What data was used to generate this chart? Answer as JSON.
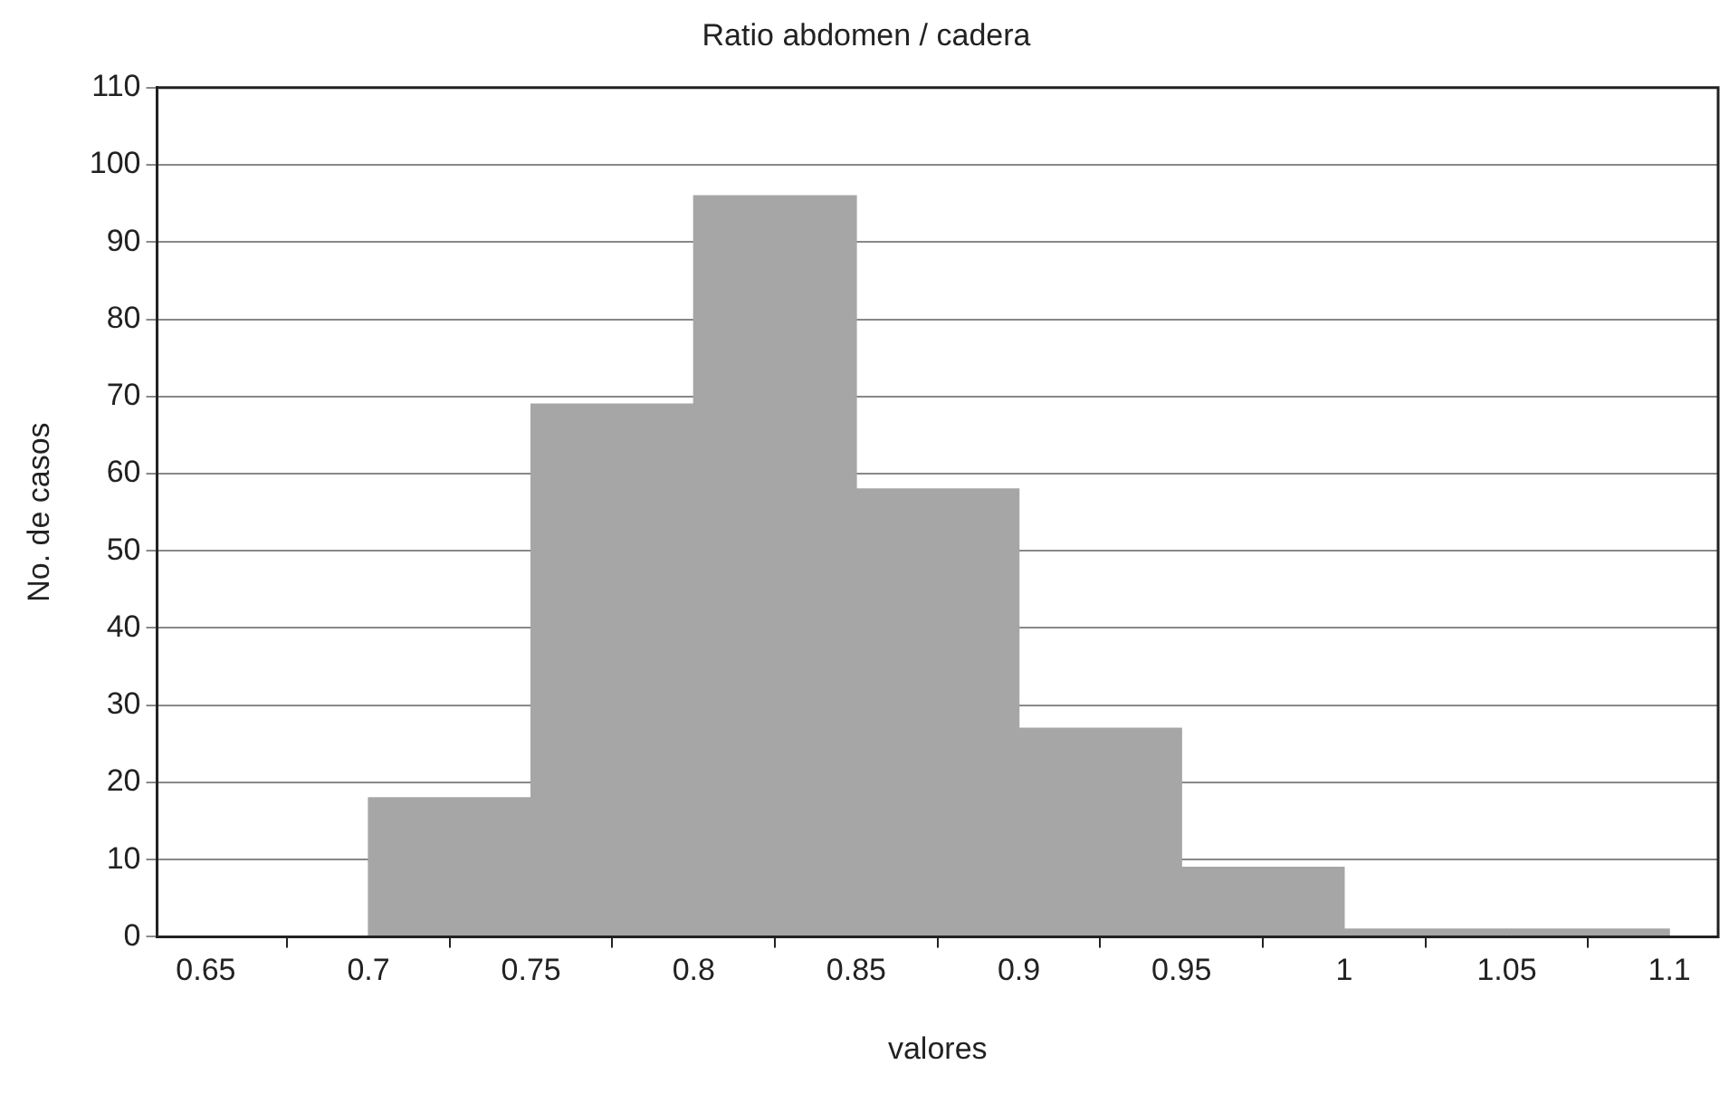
{
  "chart_data": {
    "type": "histogram",
    "title": "Ratio abdomen / cadera",
    "xlabel": "valores",
    "ylabel": "No. de casos",
    "bins": [
      0.65,
      0.7,
      0.75,
      0.8,
      0.85,
      0.9,
      0.95,
      1,
      1.05,
      1.1
    ],
    "values": [
      0,
      18,
      69,
      96,
      58,
      27,
      9,
      1,
      1
    ],
    "color": "#a6a6a6",
    "xlim": [
      0.635,
      1.115
    ],
    "xticks": [
      0.65,
      0.7,
      0.75,
      0.8,
      0.85,
      0.9,
      0.95,
      1,
      1.05,
      1.1
    ],
    "ylim": [
      0,
      110
    ],
    "yticks": [
      0,
      10,
      20,
      30,
      40,
      50,
      60,
      70,
      80,
      90,
      100,
      110
    ],
    "grid": "y",
    "legend": false
  }
}
